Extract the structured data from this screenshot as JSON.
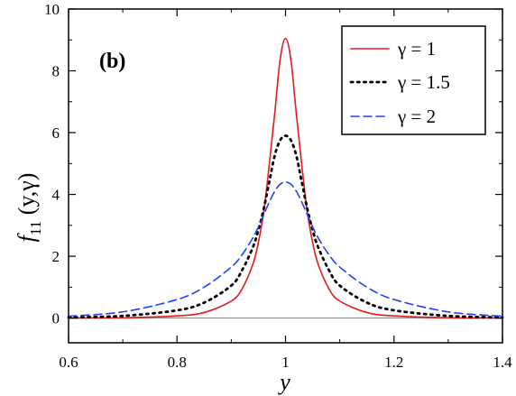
{
  "chart_data": {
    "type": "line",
    "panel_label": "(b)",
    "xlabel": "y",
    "ylabel": {
      "main": "f",
      "subscript": "11",
      "args": " (y,γ)"
    },
    "xlim": [
      0.6,
      1.4
    ],
    "ylim": [
      -0.8,
      10
    ],
    "x_ticks": [
      "0.6",
      "0.8",
      "1",
      "1.2",
      "1.4"
    ],
    "y_ticks": [
      "0",
      "2",
      "4",
      "6",
      "8",
      "10"
    ],
    "legend_position": "top-right",
    "reference_line": {
      "y": 0,
      "color": "#808080"
    },
    "series": [
      {
        "name": "γ = 1",
        "color": "#e41a1c",
        "dash": "solid",
        "x": [
          0.6,
          0.7,
          0.8,
          0.85,
          0.9,
          0.92,
          0.94,
          0.95,
          0.96,
          0.97,
          0.98,
          0.99,
          1.0,
          1.01,
          1.02,
          1.03,
          1.04,
          1.05,
          1.06,
          1.08,
          1.1,
          1.15,
          1.2,
          1.3,
          1.4
        ],
        "y": [
          0.0,
          0.01,
          0.07,
          0.18,
          0.55,
          0.95,
          1.75,
          2.45,
          3.45,
          4.95,
          6.6,
          8.35,
          9.05,
          8.35,
          6.6,
          4.95,
          3.45,
          2.45,
          1.75,
          0.95,
          0.55,
          0.18,
          0.07,
          0.01,
          0.0
        ]
      },
      {
        "name": "γ = 1.5",
        "color": "#000000",
        "dash": "dotted",
        "x": [
          0.6,
          0.7,
          0.8,
          0.85,
          0.9,
          0.92,
          0.94,
          0.95,
          0.96,
          0.97,
          0.98,
          0.99,
          1.0,
          1.01,
          1.02,
          1.03,
          1.04,
          1.05,
          1.06,
          1.08,
          1.1,
          1.15,
          1.2,
          1.3,
          1.4
        ],
        "y": [
          0.02,
          0.07,
          0.25,
          0.5,
          1.05,
          1.55,
          2.3,
          2.85,
          3.55,
          4.4,
          5.25,
          5.75,
          5.9,
          5.75,
          5.25,
          4.4,
          3.55,
          2.85,
          2.3,
          1.55,
          1.05,
          0.5,
          0.25,
          0.07,
          0.02
        ]
      },
      {
        "name": "γ = 2",
        "color": "#1f3fff",
        "dash": "dashed",
        "x": [
          0.6,
          0.7,
          0.8,
          0.85,
          0.9,
          0.92,
          0.94,
          0.95,
          0.96,
          0.97,
          0.98,
          0.99,
          1.0,
          1.01,
          1.02,
          1.03,
          1.04,
          1.05,
          1.06,
          1.08,
          1.1,
          1.15,
          1.2,
          1.3,
          1.4
        ],
        "y": [
          0.06,
          0.2,
          0.6,
          1.0,
          1.65,
          2.05,
          2.6,
          2.95,
          3.35,
          3.75,
          4.1,
          4.33,
          4.4,
          4.33,
          4.1,
          3.75,
          3.35,
          2.95,
          2.6,
          2.05,
          1.65,
          1.0,
          0.6,
          0.2,
          0.06
        ]
      }
    ]
  }
}
